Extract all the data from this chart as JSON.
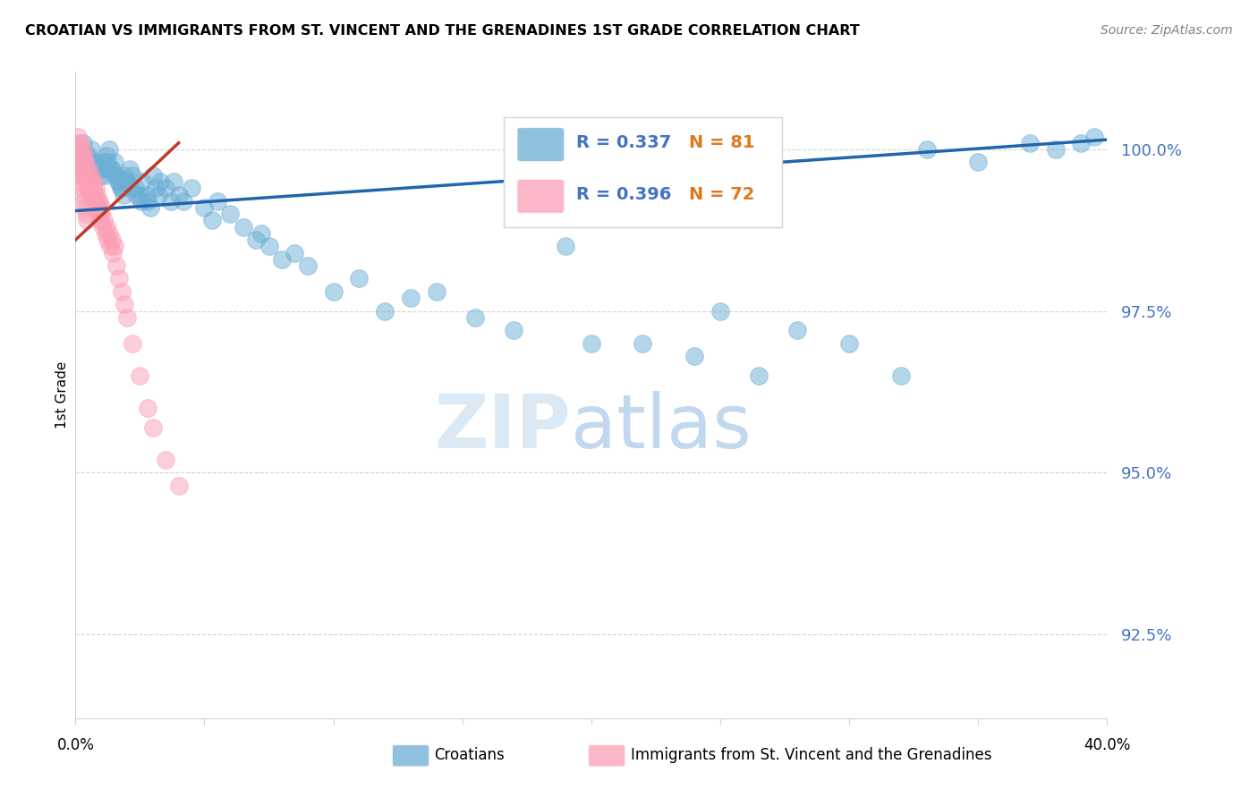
{
  "title": "CROATIAN VS IMMIGRANTS FROM ST. VINCENT AND THE GRENADINES 1ST GRADE CORRELATION CHART",
  "source": "Source: ZipAtlas.com",
  "ylabel": "1st Grade",
  "y_ticks": [
    92.5,
    95.0,
    97.5,
    100.0
  ],
  "y_tick_labels": [
    "92.5%",
    "95.0%",
    "97.5%",
    "100.0%"
  ],
  "xlim": [
    0.0,
    40.0
  ],
  "ylim": [
    91.2,
    101.2
  ],
  "legend_r1": "R = 0.337",
  "legend_n1": "N = 81",
  "legend_r2": "R = 0.396",
  "legend_n2": "N = 72",
  "color_blue": "#6baed6",
  "color_pink": "#fa9fb5",
  "trendline_blue": "#2166ac",
  "trendline_pink": "#c0392b",
  "blue_R": 0.337,
  "pink_R": 0.396,
  "blue_N": 81,
  "pink_N": 72,
  "blue_trendline_x0": 0.0,
  "blue_trendline_y0": 99.05,
  "blue_trendline_x1": 40.0,
  "blue_trendline_y1": 100.15,
  "pink_trendline_x0": 0.0,
  "pink_trendline_y0": 98.6,
  "pink_trendline_x1": 4.0,
  "pink_trendline_y1": 100.1,
  "blue_scatter_x": [
    0.3,
    0.5,
    0.6,
    0.8,
    0.9,
    1.0,
    1.1,
    1.2,
    1.3,
    1.4,
    1.5,
    1.6,
    1.7,
    1.8,
    1.9,
    2.0,
    2.1,
    2.2,
    2.3,
    2.5,
    2.6,
    2.8,
    3.0,
    3.1,
    3.2,
    3.3,
    3.5,
    3.7,
    3.8,
    4.0,
    4.2,
    4.5,
    5.0,
    5.3,
    5.5,
    6.0,
    6.5,
    7.0,
    7.2,
    7.5,
    8.0,
    8.5,
    9.0,
    10.0,
    11.0,
    12.0,
    13.0,
    14.0,
    15.5,
    17.0,
    19.0,
    20.0,
    22.0,
    24.0,
    25.0,
    26.5,
    28.0,
    30.0,
    32.0,
    33.0,
    35.0,
    37.0,
    38.0,
    39.0,
    39.5,
    0.4,
    0.7,
    1.05,
    1.15,
    1.25,
    1.35,
    1.55,
    1.65,
    1.75,
    1.85,
    1.95,
    2.15,
    2.35,
    2.55,
    2.75,
    2.9
  ],
  "blue_scatter_y": [
    100.1,
    99.9,
    100.0,
    99.8,
    99.7,
    99.6,
    99.8,
    99.9,
    100.0,
    99.7,
    99.8,
    99.6,
    99.5,
    99.4,
    99.6,
    99.5,
    99.7,
    99.6,
    99.4,
    99.3,
    99.5,
    99.2,
    99.6,
    99.4,
    99.3,
    99.5,
    99.4,
    99.2,
    99.5,
    99.3,
    99.2,
    99.4,
    99.1,
    98.9,
    99.2,
    99.0,
    98.8,
    98.6,
    98.7,
    98.5,
    98.3,
    98.4,
    98.2,
    97.8,
    98.0,
    97.5,
    97.7,
    97.8,
    97.4,
    97.2,
    98.5,
    97.0,
    97.0,
    96.8,
    97.5,
    96.5,
    97.2,
    97.0,
    96.5,
    100.0,
    99.8,
    100.1,
    100.0,
    100.1,
    100.2,
    99.9,
    99.8,
    99.7,
    99.6,
    99.8,
    99.7,
    99.6,
    99.5,
    99.4,
    99.3,
    99.5,
    99.4,
    99.3,
    99.2,
    99.3,
    99.1
  ],
  "pink_scatter_x": [
    0.05,
    0.08,
    0.1,
    0.12,
    0.15,
    0.18,
    0.2,
    0.22,
    0.25,
    0.28,
    0.3,
    0.32,
    0.35,
    0.38,
    0.4,
    0.42,
    0.45,
    0.48,
    0.5,
    0.52,
    0.55,
    0.58,
    0.6,
    0.62,
    0.65,
    0.68,
    0.7,
    0.72,
    0.75,
    0.78,
    0.8,
    0.82,
    0.85,
    0.88,
    0.9,
    0.92,
    0.95,
    0.98,
    1.0,
    1.05,
    1.1,
    1.15,
    1.2,
    1.25,
    1.3,
    1.35,
    1.4,
    1.45,
    1.5,
    1.6,
    1.7,
    1.8,
    1.9,
    2.0,
    2.2,
    2.5,
    2.8,
    3.0,
    3.5,
    4.0,
    0.06,
    0.09,
    0.13,
    0.16,
    0.19,
    0.23,
    0.26,
    0.29,
    0.33,
    0.36,
    0.39,
    0.43
  ],
  "pink_scatter_y": [
    100.1,
    100.0,
    100.2,
    99.9,
    100.0,
    99.8,
    100.1,
    99.9,
    100.0,
    99.7,
    99.8,
    99.9,
    99.6,
    99.8,
    99.5,
    99.7,
    99.6,
    99.4,
    99.7,
    99.5,
    99.4,
    99.6,
    99.3,
    99.5,
    99.2,
    99.4,
    99.3,
    99.5,
    99.2,
    99.4,
    99.1,
    99.3,
    99.2,
    99.1,
    99.0,
    99.2,
    98.9,
    99.1,
    99.0,
    98.8,
    98.9,
    98.7,
    98.8,
    98.6,
    98.7,
    98.5,
    98.6,
    98.4,
    98.5,
    98.2,
    98.0,
    97.8,
    97.6,
    97.4,
    97.0,
    96.5,
    96.0,
    95.7,
    95.2,
    94.8,
    100.0,
    99.9,
    99.8,
    99.7,
    99.6,
    99.5,
    99.4,
    99.3,
    99.2,
    99.1,
    99.0,
    98.9
  ]
}
